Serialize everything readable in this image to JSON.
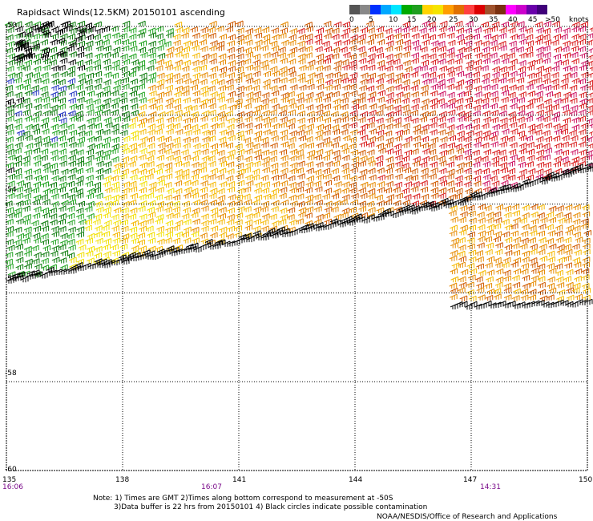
{
  "title": "Rapidsact Winds(12.5KM) 20150101 ascending",
  "legend": {
    "colors": [
      "#555555",
      "#888888",
      "#0030ff",
      "#00a8ff",
      "#00e6ff",
      "#00aa00",
      "#1f9e1f",
      "#ffd400",
      "#f5e400",
      "#ff9e00",
      "#e07000",
      "#ff4040",
      "#dd0000",
      "#a0522d",
      "#7a3010",
      "#ff00ff",
      "#cc00cc",
      "#6a00aa",
      "#40007a"
    ],
    "labels": [
      "0",
      "5",
      "10",
      "15",
      "20",
      "25",
      "30",
      "35",
      "40",
      "45",
      ">50"
    ],
    "unit": "knots"
  },
  "lat_labels": [
    "-50",
    "-52",
    "-54",
    "-56",
    "-58",
    "-60"
  ],
  "lon_labels": [
    "135",
    "138",
    "141",
    "144",
    "147",
    "150"
  ],
  "times": [
    "16:06",
    "16:07",
    "14:31"
  ],
  "notes": {
    "line1": "Note: 1) Times are GMT 2)Times along bottom correspond to measurement at -50S",
    "line2": "3)Data buffer is 22 hrs from 20150101 4) Black circles indicate possible contamination"
  },
  "credit": "NOAA/NESDIS/Office of Research and Applications",
  "map": {
    "lon_range": [
      135,
      150
    ],
    "lat_range": [
      -60,
      -50
    ],
    "grid": "dotted",
    "swath_colors": {
      "contaminated": "#000000",
      "dark_green": "#0a7a0a",
      "green": "#1fa31f",
      "blue": "#2030c0",
      "yellow": "#f2e000",
      "gold": "#f5b800",
      "orange": "#e68a00",
      "dark_orange": "#d05a00",
      "red": "#d81c1c",
      "magenta": "#cc1060"
    }
  }
}
